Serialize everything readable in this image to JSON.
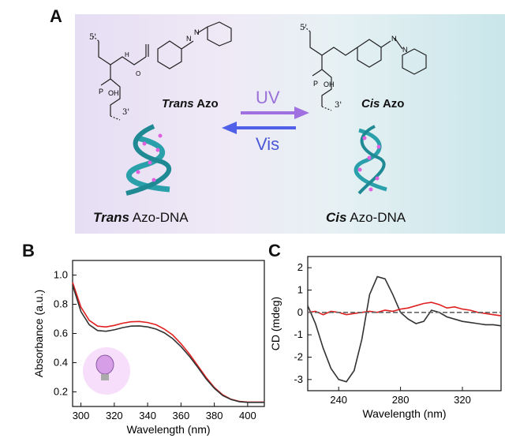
{
  "panels": {
    "a": "A",
    "b": "B",
    "c": "C"
  },
  "panelA": {
    "trans_label_prefix": "Trans",
    "trans_label_suffix": " Azo",
    "cis_label_prefix": "Cis",
    "cis_label_suffix": " Azo",
    "uv": "UV",
    "vis": "Vis",
    "trans_dna_prefix": "Trans",
    "trans_dna_suffix": " Azo-DNA",
    "cis_dna_prefix": "Cis",
    "cis_dna_suffix": " Azo-DNA",
    "five_prime": "5'",
    "three_prime": "3'",
    "nh": "H",
    "n_letter": "N",
    "oh": "OH",
    "p": "P",
    "o": "O",
    "colors": {
      "uv_arrow": "#a070e0",
      "vis_arrow": "#5060e8",
      "dna": "#2aa0aa",
      "base": "#e060e0"
    }
  },
  "chart_data": [
    {
      "type": "line",
      "xlabel": "Wavelength (nm)",
      "ylabel": "Absorbance (a.u.)",
      "xlim": [
        295,
        410
      ],
      "ylim": [
        0.1,
        1.1
      ],
      "xticks": [
        "300",
        "320",
        "340",
        "360",
        "380",
        "400"
      ],
      "yticks": [
        "0.2",
        "0.4",
        "0.6",
        "0.8",
        "1.0"
      ],
      "series": [
        {
          "color": "#e02020",
          "x": [
            295,
            300,
            305,
            310,
            315,
            320,
            325,
            330,
            335,
            340,
            345,
            350,
            355,
            360,
            365,
            370,
            375,
            380,
            385,
            390,
            395,
            400,
            405,
            410
          ],
          "values": [
            0.95,
            0.78,
            0.69,
            0.65,
            0.645,
            0.655,
            0.67,
            0.68,
            0.682,
            0.675,
            0.66,
            0.63,
            0.59,
            0.53,
            0.46,
            0.38,
            0.3,
            0.23,
            0.18,
            0.15,
            0.135,
            0.13,
            0.13,
            0.13
          ]
        },
        {
          "color": "#333333",
          "x": [
            295,
            300,
            305,
            310,
            315,
            320,
            325,
            330,
            335,
            340,
            345,
            350,
            355,
            360,
            365,
            370,
            375,
            380,
            385,
            390,
            395,
            400,
            405,
            410
          ],
          "values": [
            0.93,
            0.75,
            0.66,
            0.62,
            0.615,
            0.625,
            0.64,
            0.65,
            0.652,
            0.645,
            0.63,
            0.605,
            0.565,
            0.51,
            0.445,
            0.37,
            0.29,
            0.225,
            0.175,
            0.148,
            0.133,
            0.128,
            0.128,
            0.128
          ]
        }
      ]
    },
    {
      "type": "line",
      "xlabel": "Wavelength (nm)",
      "ylabel": "CD (mdeg)",
      "xlim": [
        220,
        345
      ],
      "ylim": [
        -3.5,
        2.5
      ],
      "xticks": [
        "240",
        "280",
        "320"
      ],
      "yticks": [
        "-3",
        "-2",
        "-1",
        "0",
        "1",
        "2"
      ],
      "series": [
        {
          "color": "#333333",
          "x": [
            220,
            225,
            230,
            235,
            240,
            245,
            250,
            255,
            260,
            265,
            270,
            275,
            280,
            285,
            290,
            295,
            300,
            305,
            310,
            315,
            320,
            325,
            330,
            335,
            340,
            345
          ],
          "values": [
            0.3,
            -0.5,
            -1.6,
            -2.5,
            -3.0,
            -3.1,
            -2.6,
            -1.2,
            0.8,
            1.6,
            1.5,
            0.8,
            0.0,
            -0.3,
            -0.5,
            -0.4,
            0.1,
            0.0,
            -0.2,
            -0.3,
            -0.4,
            -0.45,
            -0.5,
            -0.55,
            -0.55,
            -0.6
          ]
        },
        {
          "color": "#e02020",
          "x": [
            220,
            225,
            230,
            235,
            240,
            245,
            250,
            255,
            260,
            265,
            270,
            275,
            280,
            285,
            290,
            295,
            300,
            305,
            310,
            315,
            320,
            325,
            330,
            335,
            340,
            345
          ],
          "values": [
            0.0,
            0.05,
            -0.1,
            0.05,
            0.0,
            -0.1,
            -0.05,
            0.0,
            0.05,
            0.0,
            0.1,
            0.05,
            0.15,
            0.2,
            0.3,
            0.4,
            0.45,
            0.35,
            0.2,
            0.25,
            0.15,
            0.1,
            0.0,
            -0.05,
            -0.1,
            -0.15
          ]
        },
        {
          "color": "#666666",
          "dash": true,
          "x": [
            220,
            345
          ],
          "values": [
            0,
            0
          ]
        }
      ]
    }
  ]
}
